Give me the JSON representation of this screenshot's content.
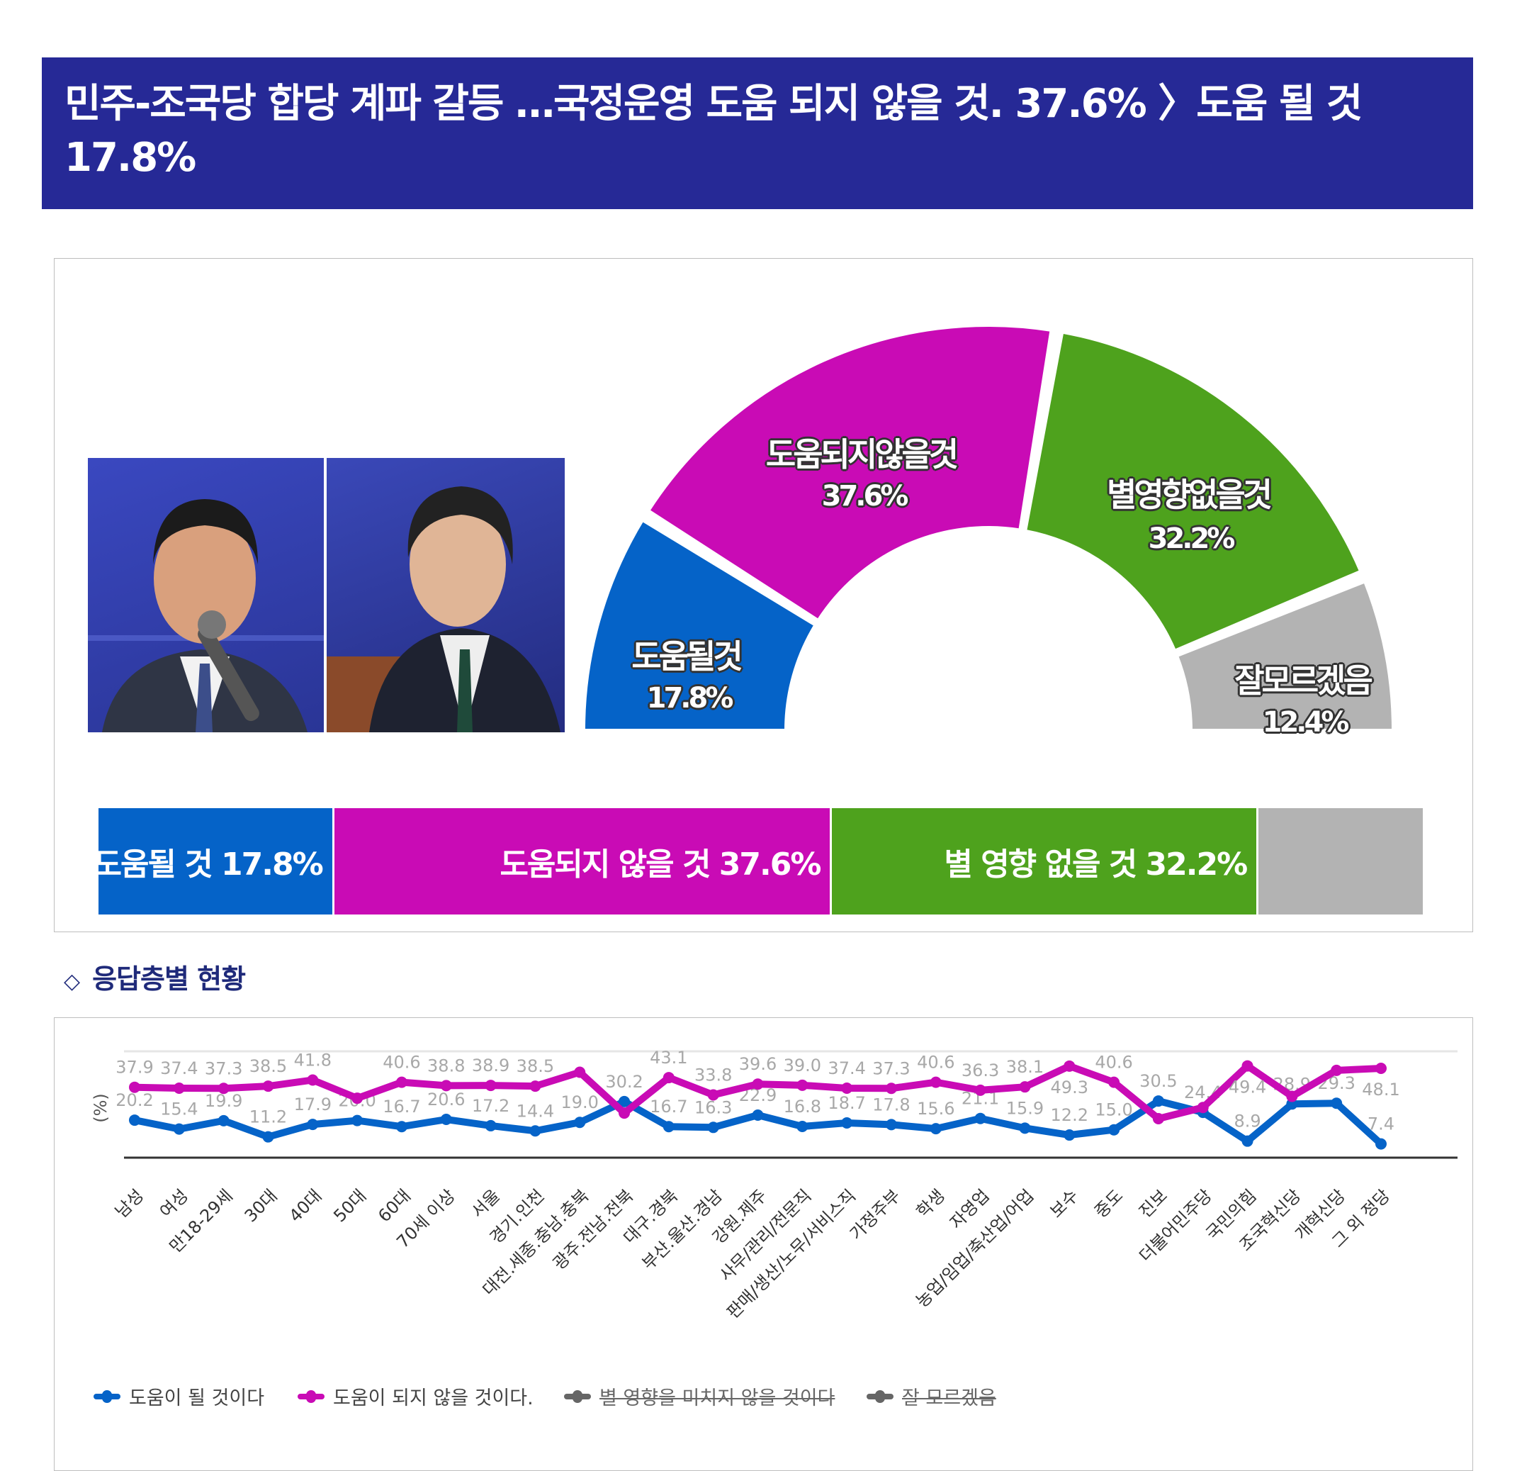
{
  "header": {
    "title": "민주-조국당 합당 계파 갈등 …국정운영 도움 되지 않을 것. 37.6% 〉도움 될 것 17.8%"
  },
  "colors": {
    "header": "#262996",
    "help": "#0563c8",
    "not_help": "#c90bb5",
    "no_effect": "#4ea21d",
    "unknown": "#b3b3b3"
  },
  "summary": {
    "segments": [
      {
        "name": "도움될것",
        "pct": "17.8%",
        "value": 17.8,
        "bar_label": "도움될 것 17.8%",
        "color": "#0563c8"
      },
      {
        "name": "도움되지않을것",
        "pct": "37.6%",
        "value": 37.6,
        "bar_label": "도움되지 않을 것 37.6%",
        "color": "#c90bb5"
      },
      {
        "name": "별영향없을것",
        "pct": "32.2%",
        "value": 32.2,
        "bar_label": "별 영향 없을 것 32.2%",
        "color": "#4ea21d"
      },
      {
        "name": "잘모르겠음",
        "pct": "12.4%",
        "value": 12.4,
        "bar_label": "",
        "color": "#b3b3b3"
      }
    ]
  },
  "section": {
    "icon": "◇",
    "title": "응답층별 현황"
  },
  "chart_data": {
    "type": "line",
    "ylabel": "(%)",
    "ylim": [
      0,
      55
    ],
    "categories": [
      "남성",
      "여성",
      "만18-29세",
      "30대",
      "40대",
      "50대",
      "60대",
      "70세 이상",
      "서울",
      "경기.인천",
      "대전.세종.충남.충북",
      "광주.전남.전북",
      "대구.경북",
      "부산.울산.경남",
      "강원.제주",
      "사무/관리/전문직",
      "판매/생산/노무/서비스직",
      "가정주부",
      "학생",
      "자영업",
      "농업/임업/축산업/어업",
      "보수",
      "중도",
      "진보",
      "더불어민주당",
      "국민의힘",
      "조국혁신당",
      "개혁신당",
      "그 외 정당"
    ],
    "series": [
      {
        "name": "도움이 될 것이다",
        "color": "#0563c8",
        "visible": true,
        "values": [
          20.2,
          15.4,
          19.9,
          11.2,
          17.9,
          20.0,
          16.7,
          20.6,
          17.2,
          14.4,
          19.0,
          30.2,
          16.7,
          16.3,
          22.9,
          16.8,
          18.7,
          17.8,
          15.6,
          21.1,
          15.9,
          12.2,
          15.0,
          30.5,
          24.4,
          8.9,
          28.9,
          29.3,
          7.4
        ],
        "value_labels": [
          "20.2",
          "15.4",
          "19.9",
          "11.2",
          "17.9",
          "20.0",
          "16.7",
          "20.6",
          "17.2",
          "14.4",
          "19.0",
          "30.2",
          "16.7",
          "16.3",
          "22.9",
          "16.8",
          "18.7",
          "17.8",
          "15.6",
          "21.1",
          "15.9",
          "12.2",
          "15.0",
          "30.5",
          "24.4",
          "8.9",
          "28.9",
          "29.3",
          "7.4"
        ]
      },
      {
        "name": "도움이 되지 않을 것이다.",
        "color": "#c90bb5",
        "visible": true,
        "values": [
          37.9,
          37.4,
          37.3,
          38.5,
          41.8,
          32,
          40.6,
          38.8,
          38.9,
          38.5,
          46,
          24,
          43.1,
          33.8,
          39.6,
          39.0,
          37.4,
          37.3,
          40.6,
          36.3,
          38.1,
          49.3,
          40.6,
          21,
          27,
          49.4,
          33,
          47,
          48.1
        ],
        "value_labels": [
          "37.9",
          "37.4",
          "37.3",
          "38.5",
          "41.8",
          "",
          "40.6",
          "38.8",
          "38.9",
          "38.5",
          "",
          "",
          "43.1",
          "33.8",
          "39.6",
          "39.0",
          "37.4",
          "37.3",
          "40.6",
          "36.3",
          "38.1",
          "49.3",
          "40.6",
          "",
          "",
          "49.4",
          "",
          "",
          "48.1"
        ]
      },
      {
        "name": "별 영향을 미치지 않을 것이다",
        "color": "#666666",
        "visible": false
      },
      {
        "name": "잘 모르겠음",
        "color": "#666666",
        "visible": false
      }
    ],
    "legend": "bottom"
  }
}
